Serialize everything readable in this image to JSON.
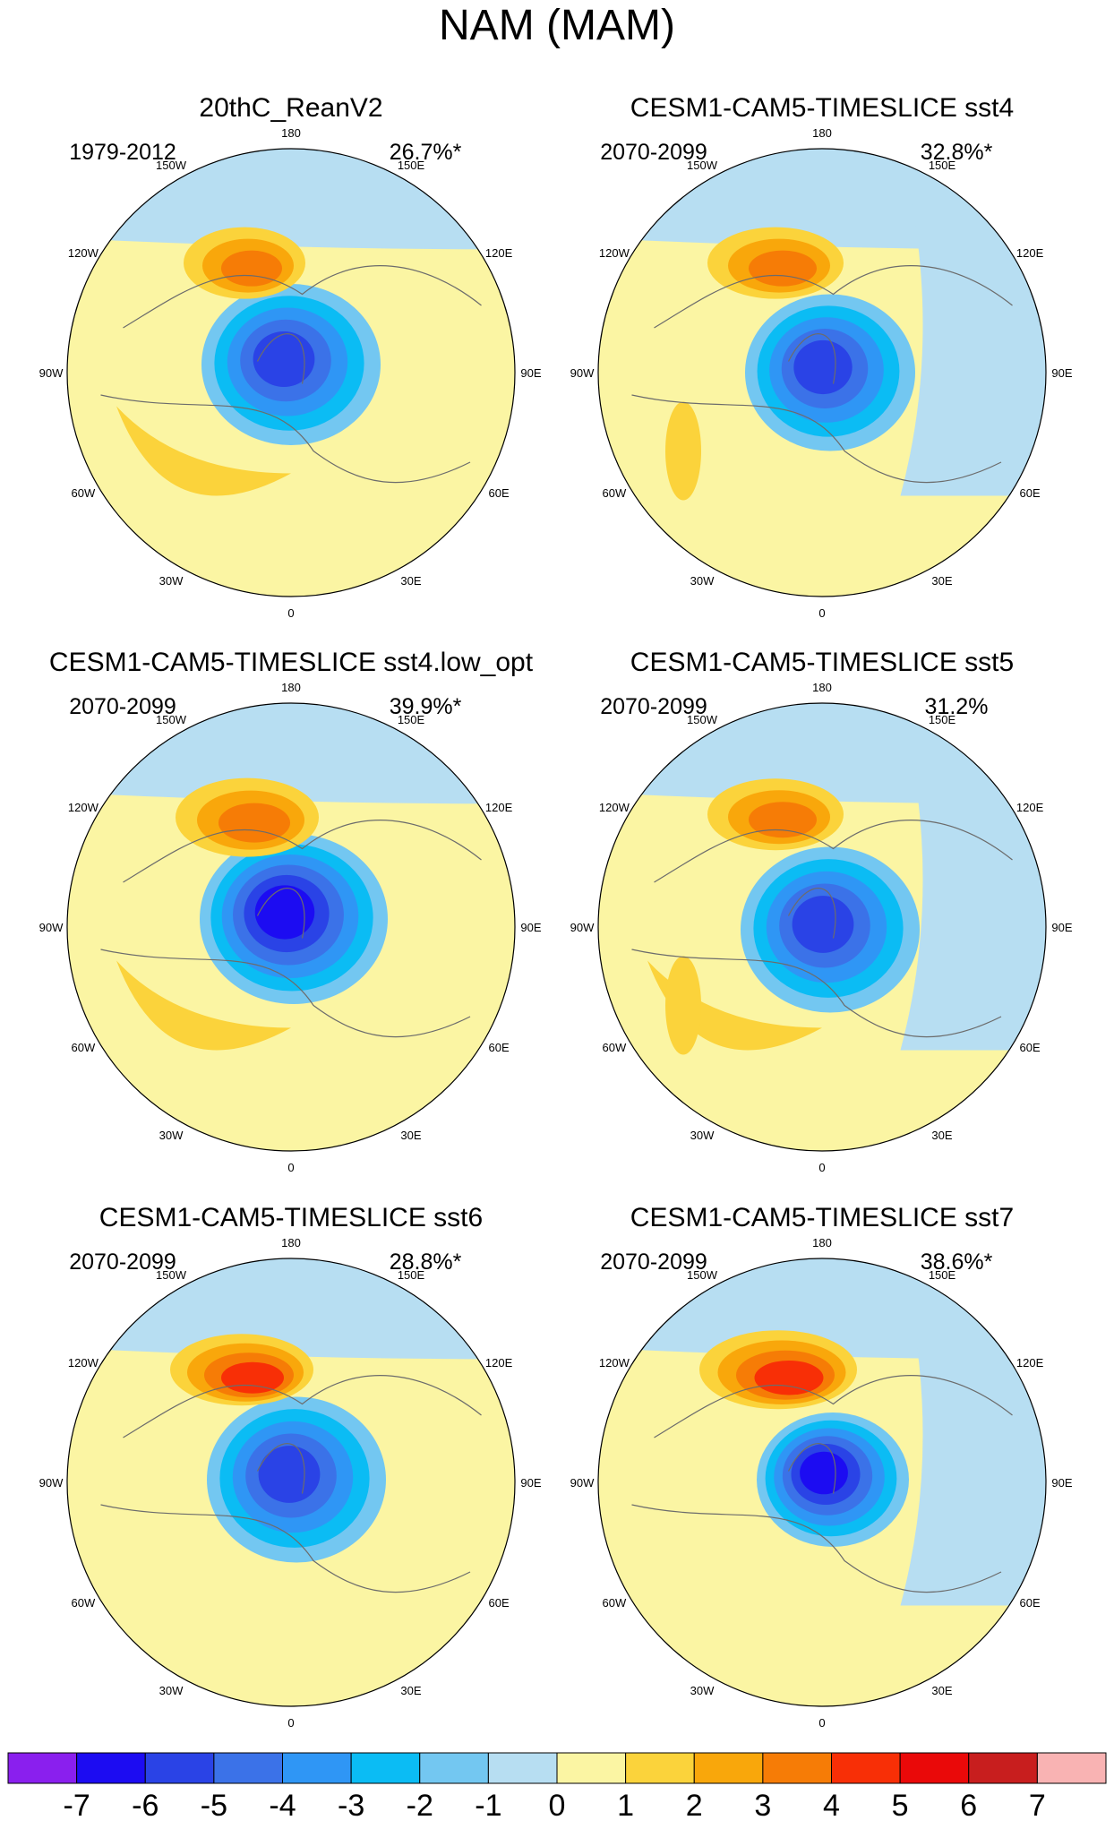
{
  "figure": {
    "title": "NAM (MAM)"
  },
  "chart_data": {
    "type": "polar-contour-maps",
    "title": "NAM (MAM)",
    "projection": "North polar stereographic",
    "longitude_labels": [
      "180",
      "150E",
      "120E",
      "90E",
      "60E",
      "30E",
      "0",
      "30W",
      "60W",
      "90W",
      "120W",
      "150W"
    ],
    "panels": [
      {
        "title": "20thC_ReanV2",
        "period": "1979-2012",
        "variance": "26.7%*",
        "min_value": -5,
        "max_value": 3
      },
      {
        "title": "CESM1-CAM5-TIMESLICE sst4",
        "period": "2070-2099",
        "variance": "32.8%*",
        "min_value": -5,
        "max_value": 3
      },
      {
        "title": "CESM1-CAM5-TIMESLICE sst4.low_opt",
        "period": "2070-2099",
        "variance": "39.9%*",
        "min_value": -6,
        "max_value": 3
      },
      {
        "title": "CESM1-CAM5-TIMESLICE sst5",
        "period": "2070-2099",
        "variance": "31.2%",
        "min_value": -5,
        "max_value": 3
      },
      {
        "title": "CESM1-CAM5-TIMESLICE sst6",
        "period": "2070-2099",
        "variance": "28.8%*",
        "min_value": -5,
        "max_value": 4
      },
      {
        "title": "CESM1-CAM5-TIMESLICE sst7",
        "period": "2070-2099",
        "variance": "38.6%*",
        "min_value": -6,
        "max_value": 4
      }
    ],
    "colorbar": {
      "labels": [
        "-7",
        "-6",
        "-5",
        "-4",
        "-3",
        "-2",
        "-1",
        "0",
        "1",
        "2",
        "3",
        "4",
        "5",
        "6",
        "7"
      ],
      "colors": [
        "#8a1fee",
        "#1c0cf2",
        "#2a43e6",
        "#3b72e8",
        "#2f96f5",
        "#0bbcf4",
        "#73c7f1",
        "#b7def2",
        "#fbf5a3",
        "#fbd33b",
        "#f9a70b",
        "#f67c06",
        "#f82f06",
        "#ea0909",
        "#c81e1e",
        "#f9b3b3"
      ]
    }
  }
}
